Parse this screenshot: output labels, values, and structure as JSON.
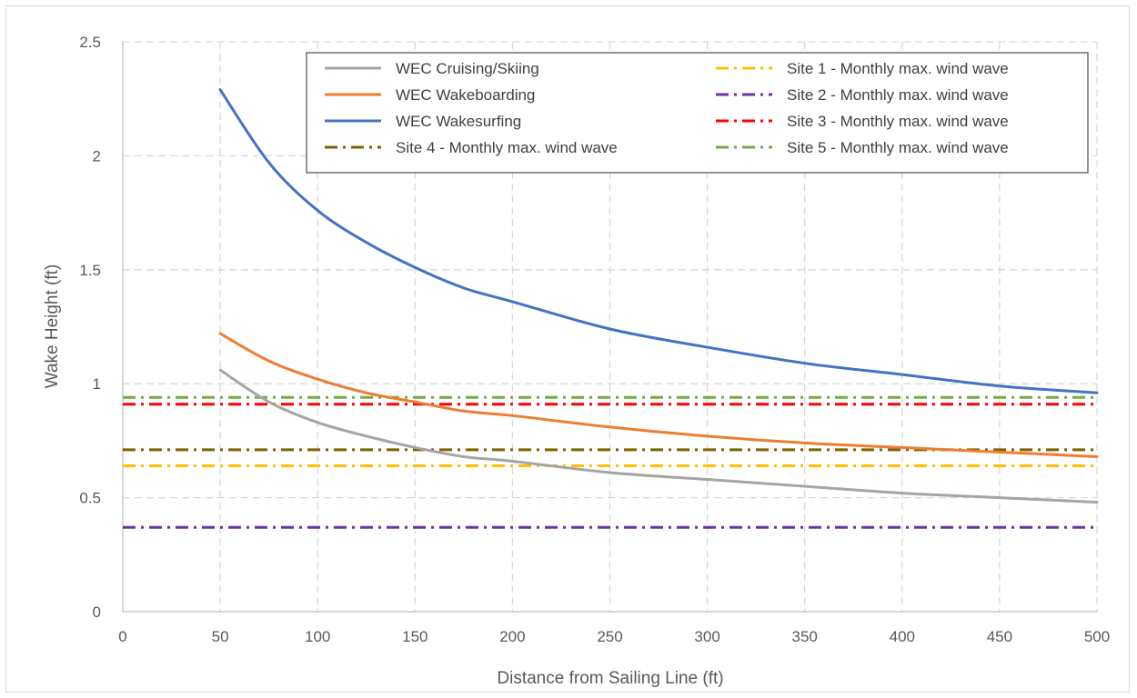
{
  "chart_data": {
    "type": "line",
    "title": "",
    "xlabel": "Distance from Sailing Line (ft)",
    "ylabel": "Wake Height (ft)",
    "xlim": [
      0,
      500
    ],
    "ylim": [
      0,
      2.5
    ],
    "xticks": [
      0,
      50,
      100,
      150,
      200,
      250,
      300,
      350,
      400,
      450,
      500
    ],
    "yticks": [
      0,
      0.5,
      1,
      1.5,
      2,
      2.5
    ],
    "xtick_labels": [
      "0",
      "50",
      "100",
      "150",
      "200",
      "250",
      "300",
      "350",
      "400",
      "450",
      "500"
    ],
    "ytick_labels": [
      "0",
      "0.5",
      "1",
      "1.5",
      "2",
      "2.5"
    ],
    "grid": true,
    "legend_position": "top-right",
    "series": [
      {
        "name": "WEC Cruising/Skiing",
        "color": "#a5a5a5",
        "style": "solid",
        "x": [
          50,
          75,
          100,
          125,
          150,
          175,
          200,
          250,
          300,
          350,
          400,
          450,
          500
        ],
        "y": [
          1.06,
          0.92,
          0.83,
          0.77,
          0.72,
          0.68,
          0.66,
          0.61,
          0.58,
          0.55,
          0.52,
          0.5,
          0.48
        ]
      },
      {
        "name": "WEC Wakeboarding",
        "color": "#ed7d31",
        "style": "solid",
        "x": [
          50,
          75,
          100,
          125,
          150,
          175,
          200,
          250,
          300,
          350,
          400,
          450,
          500
        ],
        "y": [
          1.22,
          1.1,
          1.02,
          0.96,
          0.92,
          0.88,
          0.86,
          0.81,
          0.77,
          0.74,
          0.72,
          0.7,
          0.68
        ]
      },
      {
        "name": "WEC Wakesurfing",
        "color": "#4472c4",
        "style": "solid",
        "x": [
          50,
          75,
          100,
          125,
          150,
          175,
          200,
          250,
          300,
          350,
          400,
          450,
          500
        ],
        "y": [
          2.29,
          1.97,
          1.76,
          1.62,
          1.51,
          1.42,
          1.36,
          1.24,
          1.16,
          1.09,
          1.04,
          0.99,
          0.96
        ]
      },
      {
        "name": "Site 1 - Monthly max. wind wave",
        "color": "#ffc000",
        "style": "dashdot",
        "x": [
          0,
          500
        ],
        "y": [
          0.64,
          0.64
        ]
      },
      {
        "name": "Site 2 - Monthly max. wind wave",
        "color": "#7030a0",
        "style": "dashdot",
        "x": [
          0,
          500
        ],
        "y": [
          0.37,
          0.37
        ]
      },
      {
        "name": "Site 3 - Monthly max. wind wave",
        "color": "#ff0000",
        "style": "dashdot",
        "x": [
          0,
          500
        ],
        "y": [
          0.91,
          0.91
        ]
      },
      {
        "name": "Site 4 - Monthly max. wind wave",
        "color": "#806000",
        "style": "dashdot",
        "x": [
          0,
          500
        ],
        "y": [
          0.71,
          0.71
        ]
      },
      {
        "name": "Site 5 - Monthly max. wind wave",
        "color": "#70ad47",
        "style": "dashdot",
        "x": [
          0,
          500
        ],
        "y": [
          0.94,
          0.94
        ]
      }
    ],
    "legend_order": [
      0,
      3,
      1,
      4,
      2,
      5,
      6,
      7
    ]
  }
}
